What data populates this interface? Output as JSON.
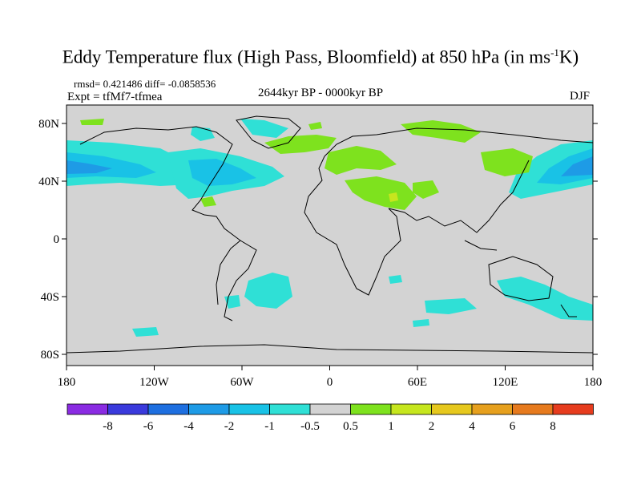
{
  "title_main": "Eddy Temperature flux (High Pass, Bloomfield) at 850 hPa (in ms",
  "title_sup": "-1",
  "title_end": "K)",
  "stats": "rmsd= 0.421486 diff= -0.0858536",
  "expt": "Expt = tfMf7-tfmea",
  "period": "2644kyr BP - 0000kyr BP",
  "season": "DJF",
  "lat_labels": [
    "80N",
    "40N",
    "0",
    "40S",
    "80S"
  ],
  "lon_labels": [
    "180",
    "120W",
    "60W",
    "0",
    "60E",
    "120E",
    "180"
  ],
  "colorbar": {
    "labels": [
      "-8",
      "-6",
      "-4",
      "-2",
      "-1",
      "-0.5",
      "0.5",
      "1",
      "2",
      "4",
      "6",
      "8"
    ],
    "colors": [
      "#8a2be2",
      "#3a3adc",
      "#1e6fe0",
      "#1e9be6",
      "#19c2e6",
      "#2fe0d6",
      "#d3d3d3",
      "#7ee21e",
      "#c6e61e",
      "#e6c81e",
      "#e6a01e",
      "#e67a1e",
      "#e63c1e"
    ]
  },
  "colors": {
    "ocean_bg": "#d3d3d3",
    "positive_small": "#7ee21e",
    "negative_small": "#2fe0d6",
    "negative_mid": "#19c2e6",
    "negative_strong": "#1e9be6"
  }
}
